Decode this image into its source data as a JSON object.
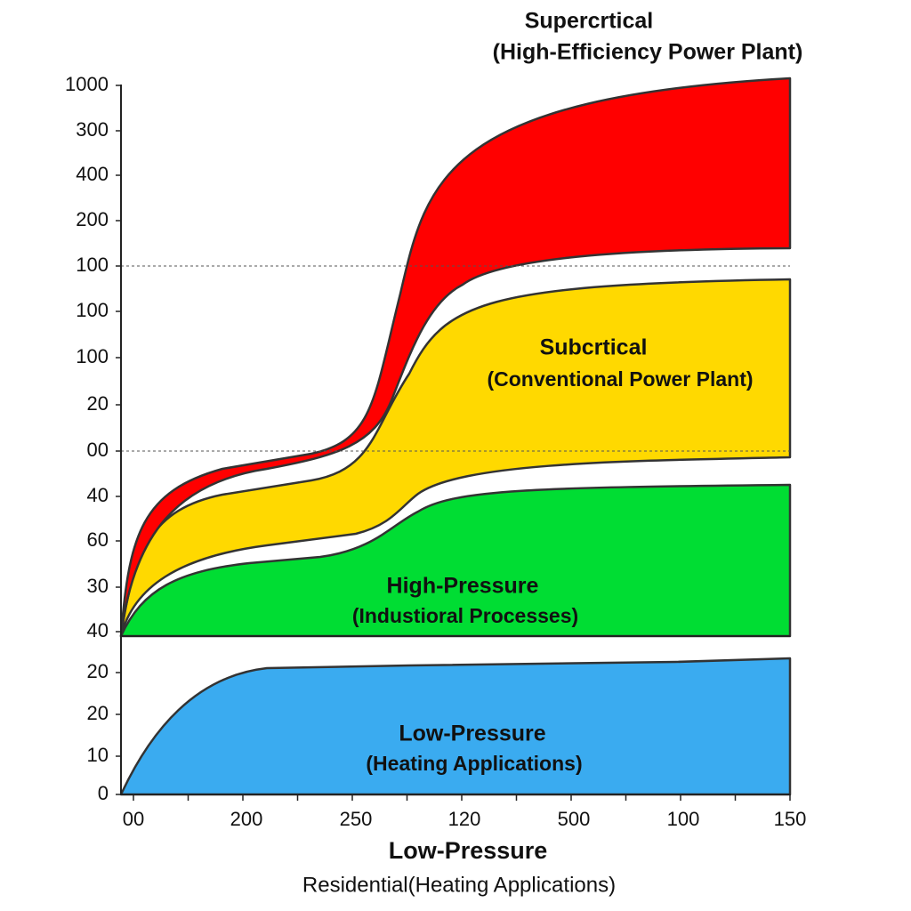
{
  "title": {
    "line1": "Supercrtical",
    "line2": "(High-Efficiency Power Plant)"
  },
  "y_axis_labels": [
    "1000",
    "300",
    "400",
    "200",
    "100",
    "100",
    "100",
    "20",
    "00",
    "40",
    "60",
    "30",
    "40",
    "20",
    "20",
    "10",
    "0"
  ],
  "x_axis_labels": [
    "00",
    "200",
    "250",
    "120",
    "500",
    "100",
    "150"
  ],
  "regions": [
    {
      "name": "Subcrtical",
      "detail": "(Conventional Power Plant)"
    },
    {
      "name": "High-Pressure",
      "detail": "(Industioral Processes)"
    },
    {
      "name": "Low-Pressure",
      "detail": "(Heating Applications)"
    }
  ],
  "x_axis_title": {
    "line1": "Low-Pressure",
    "line2": "Residential(Heating Applications)"
  }
}
